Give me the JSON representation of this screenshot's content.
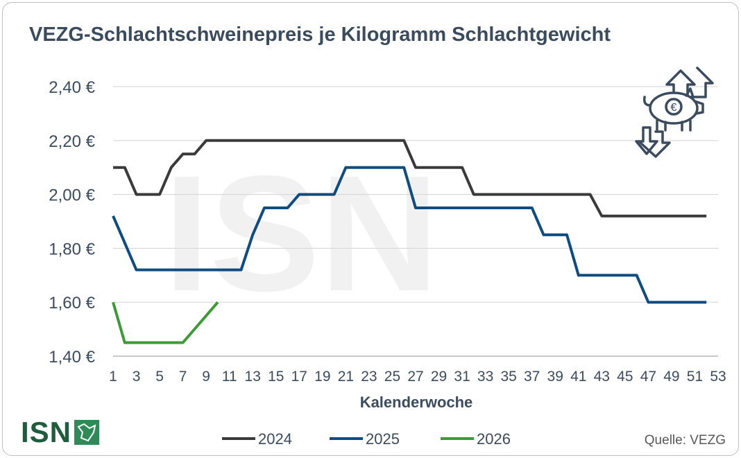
{
  "title": "VEZG-Schlachtschweinepreis je Kilogramm Schlachtgewicht",
  "source": "Quelle: VEZG",
  "logo": {
    "text": "ISN"
  },
  "watermark": "ISN",
  "icons": [
    "pig-euro-icon",
    "arrow-up-icon",
    "arrow-down-icon"
  ],
  "chart_data": {
    "type": "line",
    "title": "VEZG-Schlachtschweinepreis je Kilogramm Schlachtgewicht",
    "xlabel": "Kalenderwoche",
    "ylabel": "",
    "xlim": [
      1,
      53
    ],
    "ylim": [
      1.4,
      2.4
    ],
    "x_ticks": [
      1,
      3,
      5,
      7,
      9,
      11,
      13,
      15,
      17,
      19,
      21,
      23,
      25,
      27,
      29,
      31,
      33,
      35,
      37,
      39,
      41,
      43,
      45,
      47,
      49,
      51,
      53
    ],
    "y_ticks": [
      1.4,
      1.6,
      1.8,
      2.0,
      2.2,
      2.4
    ],
    "y_tick_labels": [
      "1,40 €",
      "1,60 €",
      "1,80 €",
      "2,00 €",
      "2,20 €",
      "2,40 €"
    ],
    "grid": "horizontal",
    "legend_position": "bottom",
    "series": [
      {
        "name": "2024",
        "color": "#3a3a3a",
        "points": [
          [
            1,
            2.1
          ],
          [
            2,
            2.1
          ],
          [
            3,
            2.0
          ],
          [
            4,
            2.0
          ],
          [
            5,
            2.0
          ],
          [
            6,
            2.1
          ],
          [
            7,
            2.15
          ],
          [
            8,
            2.15
          ],
          [
            9,
            2.2
          ],
          [
            26,
            2.2
          ],
          [
            27,
            2.1
          ],
          [
            31,
            2.1
          ],
          [
            32,
            2.0
          ],
          [
            42,
            2.0
          ],
          [
            43,
            1.92
          ],
          [
            52,
            1.92
          ]
        ]
      },
      {
        "name": "2025",
        "color": "#0f4c81",
        "points": [
          [
            1,
            1.92
          ],
          [
            2,
            1.82
          ],
          [
            3,
            1.72
          ],
          [
            12,
            1.72
          ],
          [
            13,
            1.85
          ],
          [
            14,
            1.95
          ],
          [
            16,
            1.95
          ],
          [
            17,
            2.0
          ],
          [
            20,
            2.0
          ],
          [
            21,
            2.1
          ],
          [
            26,
            2.1
          ],
          [
            27,
            1.95
          ],
          [
            37,
            1.95
          ],
          [
            38,
            1.85
          ],
          [
            40,
            1.85
          ],
          [
            41,
            1.7
          ],
          [
            46,
            1.7
          ],
          [
            47,
            1.6
          ],
          [
            52,
            1.6
          ]
        ]
      },
      {
        "name": "2026",
        "color": "#3c9a37",
        "points": [
          [
            1,
            1.6
          ],
          [
            2,
            1.45
          ],
          [
            7,
            1.45
          ],
          [
            10,
            1.6
          ]
        ]
      }
    ]
  }
}
